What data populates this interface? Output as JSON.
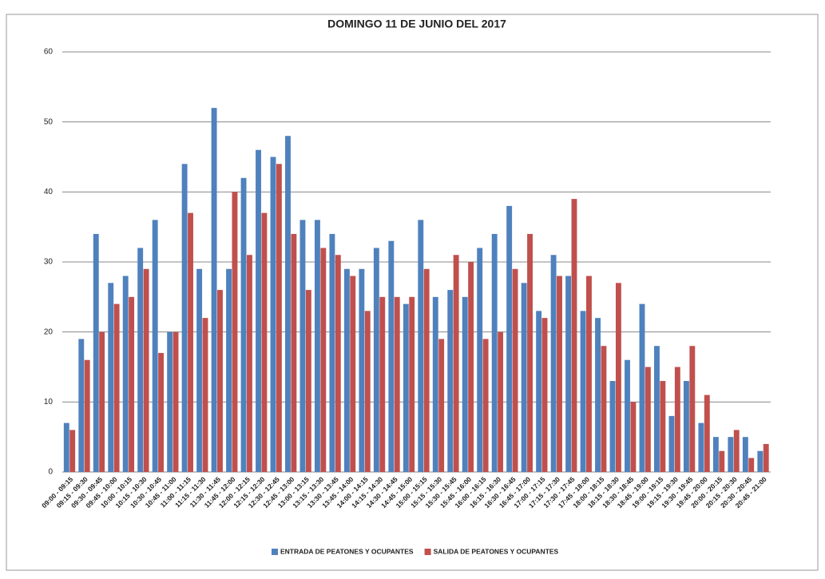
{
  "chart_data": {
    "type": "bar",
    "title": "DOMINGO  11 DE JUNIO DEL 2017",
    "categories": [
      "09:00 - 09:15",
      "09:15 - 09:30",
      "09:30 - 09:45",
      "09:45 - 10:00",
      "10:00 - 10:15",
      "10:15 - 10:30",
      "10:30 - 10:45",
      "10:45 - 11:00",
      "11:00 - 11:15",
      "11:15 - 11:30",
      "11:30 - 11:45",
      "11:45 - 12:00",
      "12:00 - 12:15",
      "12:15 - 12:30",
      "12:30 - 12:45",
      "12:45 - 13:00",
      "13:00 - 13:15",
      "13:15 - 13:30",
      "13:30 - 13:45",
      "13:45 - 14:00",
      "14:00 - 14:15",
      "14:15 - 14:30",
      "14:30 - 14:45",
      "14:45 - 15:00",
      "15:00 - 15:15",
      "15:15 - 15:30",
      "15:30 - 15:45",
      "15:45 - 16:00",
      "16:00 - 16:15",
      "16:15 - 16:30",
      "16:30 - 16:45",
      "16:45 - 17:00",
      "17:00 - 17:15",
      "17:15 - 17:30",
      "17:30 - 17:45",
      "17:45 - 18:00",
      "18:00 - 18:15",
      "18:15 - 18:30",
      "18:30 - 18:45",
      "18:45 - 19:00",
      "19:00 - 19:15",
      "19:15 - 19:30",
      "19:30 - 19:45",
      "19:45 - 20:00",
      "20:00 - 20:15",
      "20:15 - 20:30",
      "20:30 - 20:45",
      "20:45 - 21:00"
    ],
    "series": [
      {
        "name": "ENTRADA DE PEATONES Y OCUPANTES",
        "color": "#4f81bd",
        "values": [
          7,
          19,
          34,
          27,
          28,
          32,
          36,
          20,
          44,
          29,
          52,
          29,
          42,
          46,
          45,
          48,
          36,
          36,
          34,
          29,
          29,
          32,
          33,
          24,
          36,
          25,
          26,
          25,
          32,
          34,
          38,
          27,
          23,
          31,
          28,
          23,
          22,
          13,
          16,
          24,
          18,
          8,
          13,
          7,
          5,
          5,
          5,
          3
        ]
      },
      {
        "name": "SALIDA DE PEATONES Y OCUPANTES",
        "color": "#c0504d",
        "values": [
          6,
          16,
          20,
          24,
          25,
          29,
          17,
          20,
          37,
          22,
          26,
          40,
          31,
          37,
          44,
          34,
          26,
          32,
          31,
          28,
          23,
          25,
          25,
          25,
          29,
          19,
          31,
          30,
          19,
          20,
          29,
          34,
          22,
          28,
          39,
          28,
          18,
          27,
          10,
          15,
          13,
          15,
          18,
          11,
          3,
          6,
          2,
          4
        ]
      }
    ],
    "ylim": [
      0,
      60
    ],
    "yticks": [
      0,
      10,
      20,
      30,
      40,
      50,
      60
    ],
    "grid": true,
    "legend": "bottom"
  }
}
